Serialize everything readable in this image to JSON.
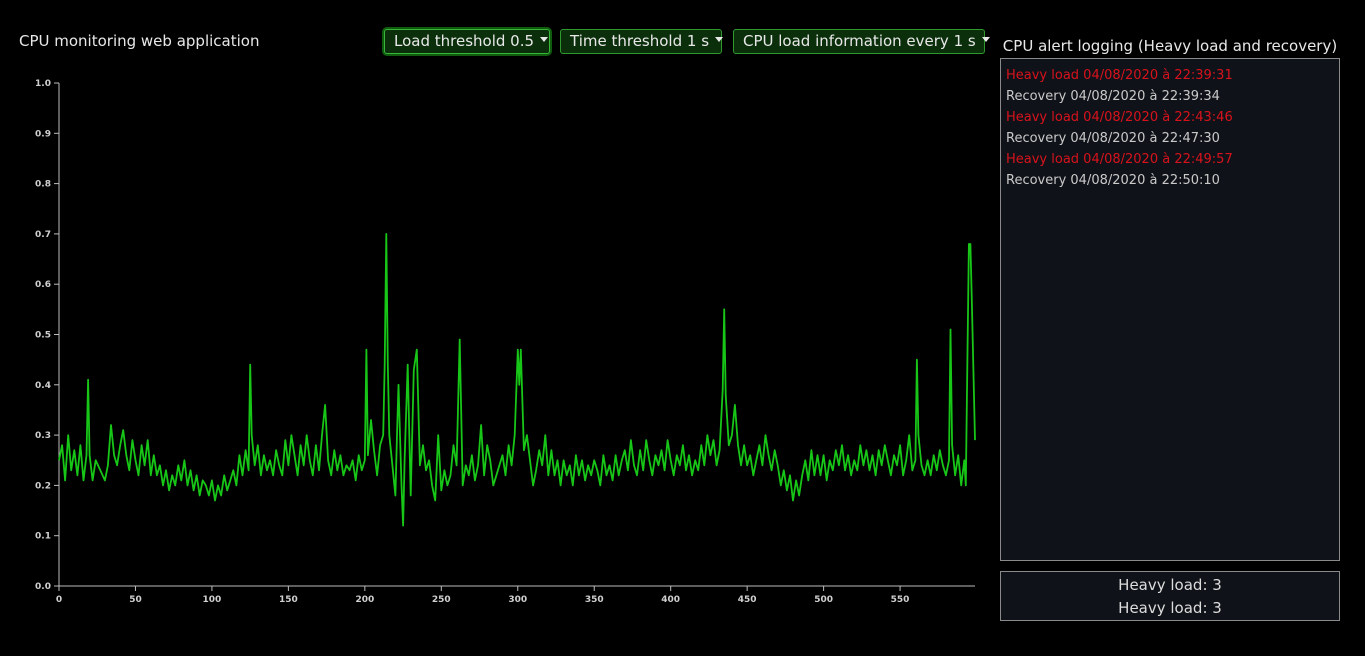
{
  "app": {
    "title": "CPU monitoring web application"
  },
  "controls": {
    "load_threshold": "Load threshold 0.5",
    "time_threshold": "Time threshold 1 s",
    "info_interval": "CPU load information every 1 s"
  },
  "log": {
    "title": "CPU alert logging (Heavy load and recovery)",
    "entries": [
      {
        "type": "heavy",
        "text": "Heavy load 04/08/2020 à 22:39:31"
      },
      {
        "type": "recovery",
        "text": "Recovery 04/08/2020 à 22:39:34"
      },
      {
        "type": "heavy",
        "text": "Heavy load 04/08/2020 à 22:43:46"
      },
      {
        "type": "recovery",
        "text": "Recovery 04/08/2020 à 22:47:30"
      },
      {
        "type": "heavy",
        "text": "Heavy load 04/08/2020 à 22:49:57"
      },
      {
        "type": "recovery",
        "text": "Recovery 04/08/2020 à 22:50:10"
      }
    ],
    "heavy_color": "#d8121c",
    "recovery_color": "#c9c9c9"
  },
  "counts": [
    "Heavy load: 3",
    "Heavy load: 3"
  ],
  "chart_data": {
    "type": "line",
    "title": "",
    "xlabel": "",
    "ylabel": "",
    "xlim": [
      0,
      599
    ],
    "ylim": [
      0,
      1.0
    ],
    "xticks": [
      0,
      50,
      100,
      150,
      200,
      250,
      300,
      350,
      400,
      450,
      500,
      550
    ],
    "yticks": [
      "0.0",
      "0.1",
      "0.2",
      "0.3",
      "0.4",
      "0.5",
      "0.6",
      "0.7",
      "0.8",
      "0.9",
      "1.0"
    ],
    "grid": false,
    "line_color": "#17c617",
    "series": [
      {
        "points": [
          [
            0,
            0.25
          ],
          [
            2,
            0.28
          ],
          [
            4,
            0.21
          ],
          [
            6,
            0.3
          ],
          [
            8,
            0.23
          ],
          [
            10,
            0.27
          ],
          [
            12,
            0.22
          ],
          [
            14,
            0.28
          ],
          [
            16,
            0.21
          ],
          [
            18,
            0.26
          ],
          [
            19,
            0.41
          ],
          [
            20,
            0.26
          ],
          [
            22,
            0.21
          ],
          [
            24,
            0.25
          ],
          [
            27,
            0.23
          ],
          [
            30,
            0.21
          ],
          [
            32,
            0.24
          ],
          [
            34,
            0.32
          ],
          [
            36,
            0.26
          ],
          [
            38,
            0.24
          ],
          [
            40,
            0.28
          ],
          [
            42,
            0.31
          ],
          [
            44,
            0.26
          ],
          [
            46,
            0.23
          ],
          [
            48,
            0.29
          ],
          [
            50,
            0.25
          ],
          [
            52,
            0.22
          ],
          [
            54,
            0.28
          ],
          [
            56,
            0.24
          ],
          [
            58,
            0.29
          ],
          [
            60,
            0.22
          ],
          [
            62,
            0.26
          ],
          [
            64,
            0.22
          ],
          [
            66,
            0.24
          ],
          [
            68,
            0.2
          ],
          [
            70,
            0.23
          ],
          [
            72,
            0.19
          ],
          [
            74,
            0.22
          ],
          [
            76,
            0.2
          ],
          [
            78,
            0.24
          ],
          [
            80,
            0.21
          ],
          [
            82,
            0.25
          ],
          [
            84,
            0.2
          ],
          [
            86,
            0.23
          ],
          [
            88,
            0.19
          ],
          [
            90,
            0.22
          ],
          [
            92,
            0.18
          ],
          [
            94,
            0.21
          ],
          [
            96,
            0.2
          ],
          [
            98,
            0.18
          ],
          [
            100,
            0.21
          ],
          [
            102,
            0.17
          ],
          [
            104,
            0.2
          ],
          [
            106,
            0.18
          ],
          [
            108,
            0.22
          ],
          [
            110,
            0.19
          ],
          [
            112,
            0.21
          ],
          [
            114,
            0.23
          ],
          [
            116,
            0.2
          ],
          [
            118,
            0.26
          ],
          [
            120,
            0.22
          ],
          [
            122,
            0.27
          ],
          [
            124,
            0.23
          ],
          [
            125,
            0.44
          ],
          [
            126,
            0.3
          ],
          [
            128,
            0.24
          ],
          [
            130,
            0.28
          ],
          [
            132,
            0.22
          ],
          [
            134,
            0.26
          ],
          [
            136,
            0.23
          ],
          [
            138,
            0.25
          ],
          [
            140,
            0.22
          ],
          [
            142,
            0.27
          ],
          [
            144,
            0.24
          ],
          [
            146,
            0.22
          ],
          [
            148,
            0.29
          ],
          [
            150,
            0.24
          ],
          [
            152,
            0.3
          ],
          [
            154,
            0.26
          ],
          [
            156,
            0.22
          ],
          [
            158,
            0.28
          ],
          [
            160,
            0.24
          ],
          [
            162,
            0.3
          ],
          [
            164,
            0.25
          ],
          [
            166,
            0.22
          ],
          [
            168,
            0.28
          ],
          [
            170,
            0.23
          ],
          [
            172,
            0.3
          ],
          [
            174,
            0.36
          ],
          [
            176,
            0.25
          ],
          [
            178,
            0.22
          ],
          [
            180,
            0.27
          ],
          [
            182,
            0.23
          ],
          [
            184,
            0.26
          ],
          [
            186,
            0.22
          ],
          [
            188,
            0.24
          ],
          [
            190,
            0.23
          ],
          [
            192,
            0.25
          ],
          [
            194,
            0.21
          ],
          [
            196,
            0.26
          ],
          [
            198,
            0.23
          ],
          [
            200,
            0.25
          ],
          [
            201,
            0.47
          ],
          [
            202,
            0.26
          ],
          [
            204,
            0.33
          ],
          [
            206,
            0.27
          ],
          [
            208,
            0.22
          ],
          [
            210,
            0.28
          ],
          [
            212,
            0.3
          ],
          [
            213,
            0.44
          ],
          [
            214,
            0.7
          ],
          [
            215,
            0.44
          ],
          [
            216,
            0.3
          ],
          [
            218,
            0.24
          ],
          [
            220,
            0.18
          ],
          [
            221,
            0.3
          ],
          [
            222,
            0.4
          ],
          [
            224,
            0.2
          ],
          [
            225,
            0.12
          ],
          [
            226,
            0.25
          ],
          [
            228,
            0.44
          ],
          [
            230,
            0.18
          ],
          [
            232,
            0.43
          ],
          [
            234,
            0.47
          ],
          [
            236,
            0.24
          ],
          [
            238,
            0.28
          ],
          [
            240,
            0.23
          ],
          [
            242,
            0.25
          ],
          [
            244,
            0.2
          ],
          [
            246,
            0.17
          ],
          [
            248,
            0.3
          ],
          [
            250,
            0.19
          ],
          [
            252,
            0.23
          ],
          [
            254,
            0.2
          ],
          [
            256,
            0.22
          ],
          [
            258,
            0.28
          ],
          [
            260,
            0.24
          ],
          [
            262,
            0.49
          ],
          [
            264,
            0.2
          ],
          [
            266,
            0.24
          ],
          [
            268,
            0.22
          ],
          [
            270,
            0.26
          ],
          [
            272,
            0.21
          ],
          [
            274,
            0.24
          ],
          [
            276,
            0.32
          ],
          [
            278,
            0.22
          ],
          [
            280,
            0.28
          ],
          [
            282,
            0.25
          ],
          [
            284,
            0.2
          ],
          [
            286,
            0.22
          ],
          [
            288,
            0.24
          ],
          [
            290,
            0.26
          ],
          [
            292,
            0.22
          ],
          [
            294,
            0.28
          ],
          [
            296,
            0.24
          ],
          [
            298,
            0.3
          ],
          [
            300,
            0.47
          ],
          [
            301,
            0.4
          ],
          [
            302,
            0.47
          ],
          [
            304,
            0.27
          ],
          [
            306,
            0.3
          ],
          [
            308,
            0.25
          ],
          [
            310,
            0.2
          ],
          [
            312,
            0.23
          ],
          [
            314,
            0.27
          ],
          [
            316,
            0.24
          ],
          [
            318,
            0.3
          ],
          [
            320,
            0.22
          ],
          [
            322,
            0.27
          ],
          [
            324,
            0.22
          ],
          [
            326,
            0.25
          ],
          [
            328,
            0.2
          ],
          [
            330,
            0.25
          ],
          [
            332,
            0.22
          ],
          [
            334,
            0.24
          ],
          [
            336,
            0.2
          ],
          [
            338,
            0.26
          ],
          [
            340,
            0.22
          ],
          [
            342,
            0.25
          ],
          [
            344,
            0.21
          ],
          [
            346,
            0.24
          ],
          [
            348,
            0.22
          ],
          [
            350,
            0.25
          ],
          [
            352,
            0.23
          ],
          [
            354,
            0.2
          ],
          [
            356,
            0.26
          ],
          [
            358,
            0.22
          ],
          [
            360,
            0.24
          ],
          [
            362,
            0.21
          ],
          [
            364,
            0.26
          ],
          [
            366,
            0.22
          ],
          [
            368,
            0.25
          ],
          [
            370,
            0.27
          ],
          [
            372,
            0.23
          ],
          [
            374,
            0.29
          ],
          [
            376,
            0.24
          ],
          [
            378,
            0.22
          ],
          [
            380,
            0.27
          ],
          [
            382,
            0.23
          ],
          [
            384,
            0.29
          ],
          [
            386,
            0.25
          ],
          [
            388,
            0.22
          ],
          [
            390,
            0.26
          ],
          [
            392,
            0.24
          ],
          [
            394,
            0.27
          ],
          [
            396,
            0.23
          ],
          [
            398,
            0.29
          ],
          [
            400,
            0.25
          ],
          [
            402,
            0.22
          ],
          [
            404,
            0.26
          ],
          [
            406,
            0.24
          ],
          [
            408,
            0.28
          ],
          [
            410,
            0.23
          ],
          [
            412,
            0.26
          ],
          [
            414,
            0.22
          ],
          [
            416,
            0.25
          ],
          [
            418,
            0.23
          ],
          [
            420,
            0.28
          ],
          [
            422,
            0.24
          ],
          [
            424,
            0.3
          ],
          [
            426,
            0.26
          ],
          [
            428,
            0.29
          ],
          [
            430,
            0.24
          ],
          [
            432,
            0.27
          ],
          [
            434,
            0.39
          ],
          [
            435,
            0.55
          ],
          [
            436,
            0.38
          ],
          [
            438,
            0.28
          ],
          [
            440,
            0.3
          ],
          [
            442,
            0.36
          ],
          [
            444,
            0.28
          ],
          [
            446,
            0.24
          ],
          [
            448,
            0.28
          ],
          [
            450,
            0.24
          ],
          [
            452,
            0.26
          ],
          [
            454,
            0.22
          ],
          [
            456,
            0.25
          ],
          [
            458,
            0.28
          ],
          [
            460,
            0.24
          ],
          [
            462,
            0.3
          ],
          [
            464,
            0.26
          ],
          [
            466,
            0.23
          ],
          [
            468,
            0.27
          ],
          [
            470,
            0.24
          ],
          [
            472,
            0.2
          ],
          [
            474,
            0.23
          ],
          [
            476,
            0.19
          ],
          [
            478,
            0.22
          ],
          [
            480,
            0.17
          ],
          [
            482,
            0.21
          ],
          [
            484,
            0.18
          ],
          [
            486,
            0.22
          ],
          [
            488,
            0.25
          ],
          [
            490,
            0.21
          ],
          [
            492,
            0.27
          ],
          [
            494,
            0.22
          ],
          [
            496,
            0.26
          ],
          [
            498,
            0.22
          ],
          [
            500,
            0.26
          ],
          [
            502,
            0.21
          ],
          [
            504,
            0.25
          ],
          [
            506,
            0.23
          ],
          [
            508,
            0.27
          ],
          [
            510,
            0.24
          ],
          [
            512,
            0.28
          ],
          [
            514,
            0.23
          ],
          [
            516,
            0.26
          ],
          [
            518,
            0.22
          ],
          [
            520,
            0.25
          ],
          [
            522,
            0.23
          ],
          [
            524,
            0.28
          ],
          [
            526,
            0.24
          ],
          [
            528,
            0.27
          ],
          [
            530,
            0.23
          ],
          [
            532,
            0.26
          ],
          [
            534,
            0.22
          ],
          [
            536,
            0.27
          ],
          [
            538,
            0.24
          ],
          [
            540,
            0.28
          ],
          [
            542,
            0.25
          ],
          [
            544,
            0.22
          ],
          [
            546,
            0.26
          ],
          [
            548,
            0.24
          ],
          [
            550,
            0.28
          ],
          [
            552,
            0.22
          ],
          [
            554,
            0.25
          ],
          [
            556,
            0.3
          ],
          [
            558,
            0.23
          ],
          [
            560,
            0.25
          ],
          [
            561,
            0.45
          ],
          [
            562,
            0.3
          ],
          [
            564,
            0.24
          ],
          [
            566,
            0.22
          ],
          [
            568,
            0.25
          ],
          [
            570,
            0.22
          ],
          [
            572,
            0.26
          ],
          [
            574,
            0.23
          ],
          [
            576,
            0.27
          ],
          [
            578,
            0.24
          ],
          [
            580,
            0.22
          ],
          [
            582,
            0.25
          ],
          [
            583,
            0.51
          ],
          [
            584,
            0.28
          ],
          [
            586,
            0.22
          ],
          [
            588,
            0.26
          ],
          [
            590,
            0.2
          ],
          [
            592,
            0.25
          ],
          [
            593,
            0.2
          ],
          [
            594,
            0.45
          ],
          [
            595,
            0.68
          ],
          [
            596,
            0.68
          ],
          [
            597,
            0.56
          ],
          [
            599,
            0.29
          ]
        ]
      }
    ]
  }
}
